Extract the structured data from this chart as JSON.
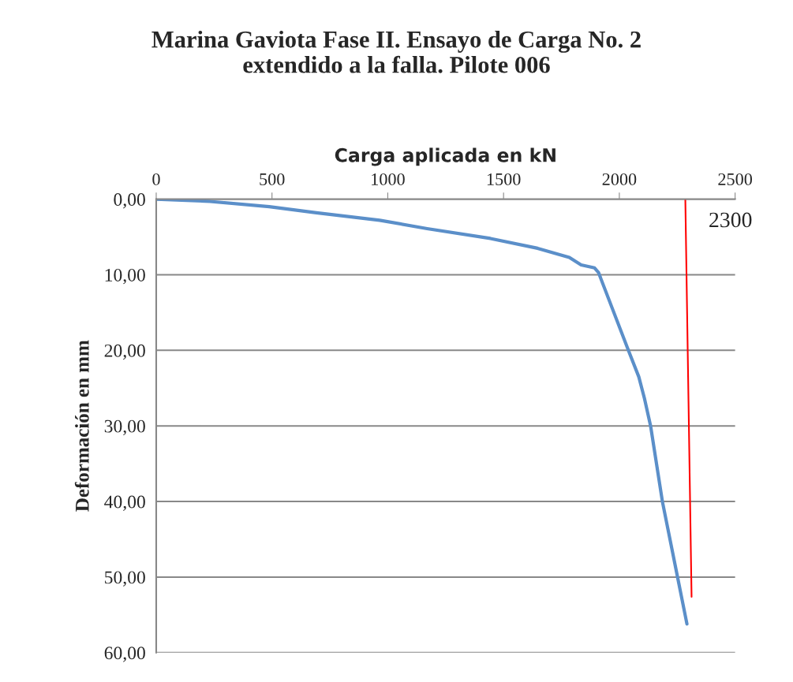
{
  "chart_data": {
    "type": "line",
    "title": "Marina Gaviota Fase II. Ensayo de Carga No. 2\nextendido a la falla. Pilote 006",
    "xlabel": "Carga aplicada en kN",
    "ylabel": "Deformación en mm",
    "series": [
      {
        "color": "#5b8fc9",
        "x": [
          0,
          232,
          488,
          692,
          965,
          1170,
          1443,
          1647,
          1784,
          1835,
          1893,
          1910,
          2043,
          2084,
          2108,
          2135,
          2186,
          2254,
          2292
        ],
        "values": [
          0,
          0.3,
          1.0,
          1.8,
          2.8,
          3.9,
          5.2,
          6.5,
          7.7,
          8.7,
          9.1,
          9.7,
          20.3,
          23.5,
          26.3,
          30.0,
          40.0,
          50.4,
          56.2
        ]
      },
      {
        "color": "#ff0000",
        "x": [
          2285,
          2312
        ],
        "values": [
          0,
          52.6
        ]
      }
    ],
    "annotations": [
      {
        "text": "2300",
        "x": 2300,
        "y": 3
      }
    ],
    "xlim": [
      0,
      2500
    ],
    "xticks": [
      0,
      500,
      1000,
      1500,
      2000,
      2500
    ],
    "ylim": [
      60,
      0
    ],
    "yticks": [
      {
        "value": 0,
        "label": "0,00"
      },
      {
        "value": 10,
        "label": "10,00"
      },
      {
        "value": 20,
        "label": "20,00"
      },
      {
        "value": 30,
        "label": "30,00"
      },
      {
        "value": 40,
        "label": "40,00"
      },
      {
        "value": 50,
        "label": "50,00"
      },
      {
        "value": 60,
        "label": "60,00"
      }
    ],
    "grid": "y",
    "legend": false
  }
}
